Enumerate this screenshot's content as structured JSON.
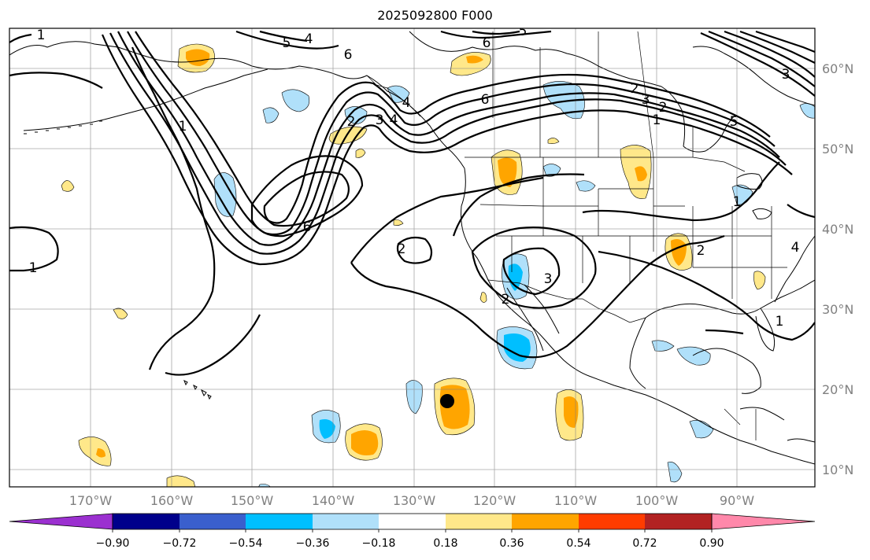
{
  "title": "2025092800 F000",
  "latitude_labels": [
    "60°N",
    "50°N",
    "40°N",
    "30°N",
    "20°N",
    "10°N"
  ],
  "longitude_labels": [
    "170°W",
    "160°W",
    "150°W",
    "140°W",
    "130°W",
    "120°W",
    "110°W",
    "100°W",
    "90°W"
  ],
  "colorbar": {
    "ticks": [
      "−0.90",
      "−0.72",
      "−0.54",
      "−0.36",
      "−0.18",
      "0.18",
      "0.36",
      "0.54",
      "0.72",
      "0.90"
    ],
    "colors": [
      "#9b30d0",
      "#00008b",
      "#3a5fcd",
      "#00bfff",
      "#b0e0fa",
      "#ffffff",
      "#ffe88a",
      "#ffa500",
      "#ff3c00",
      "#b22222",
      "#ff88aa"
    ]
  },
  "contour_labels": [
    "1",
    "5",
    "4",
    "5",
    "6",
    "6",
    "6",
    "2",
    "3",
    "1",
    "2",
    "1",
    "6",
    "1",
    "3",
    "4",
    "2",
    "2",
    "3",
    "2",
    "4",
    "5",
    "3",
    "2",
    "1",
    "4",
    "1"
  ],
  "marker": {
    "name": "storm-center",
    "lon": -126,
    "lat": 18.5
  },
  "anomaly_colors": {
    "neg_light": "#b0e0fa",
    "neg": "#00bfff",
    "pos_light": "#ffe88a",
    "pos": "#ffa500"
  }
}
